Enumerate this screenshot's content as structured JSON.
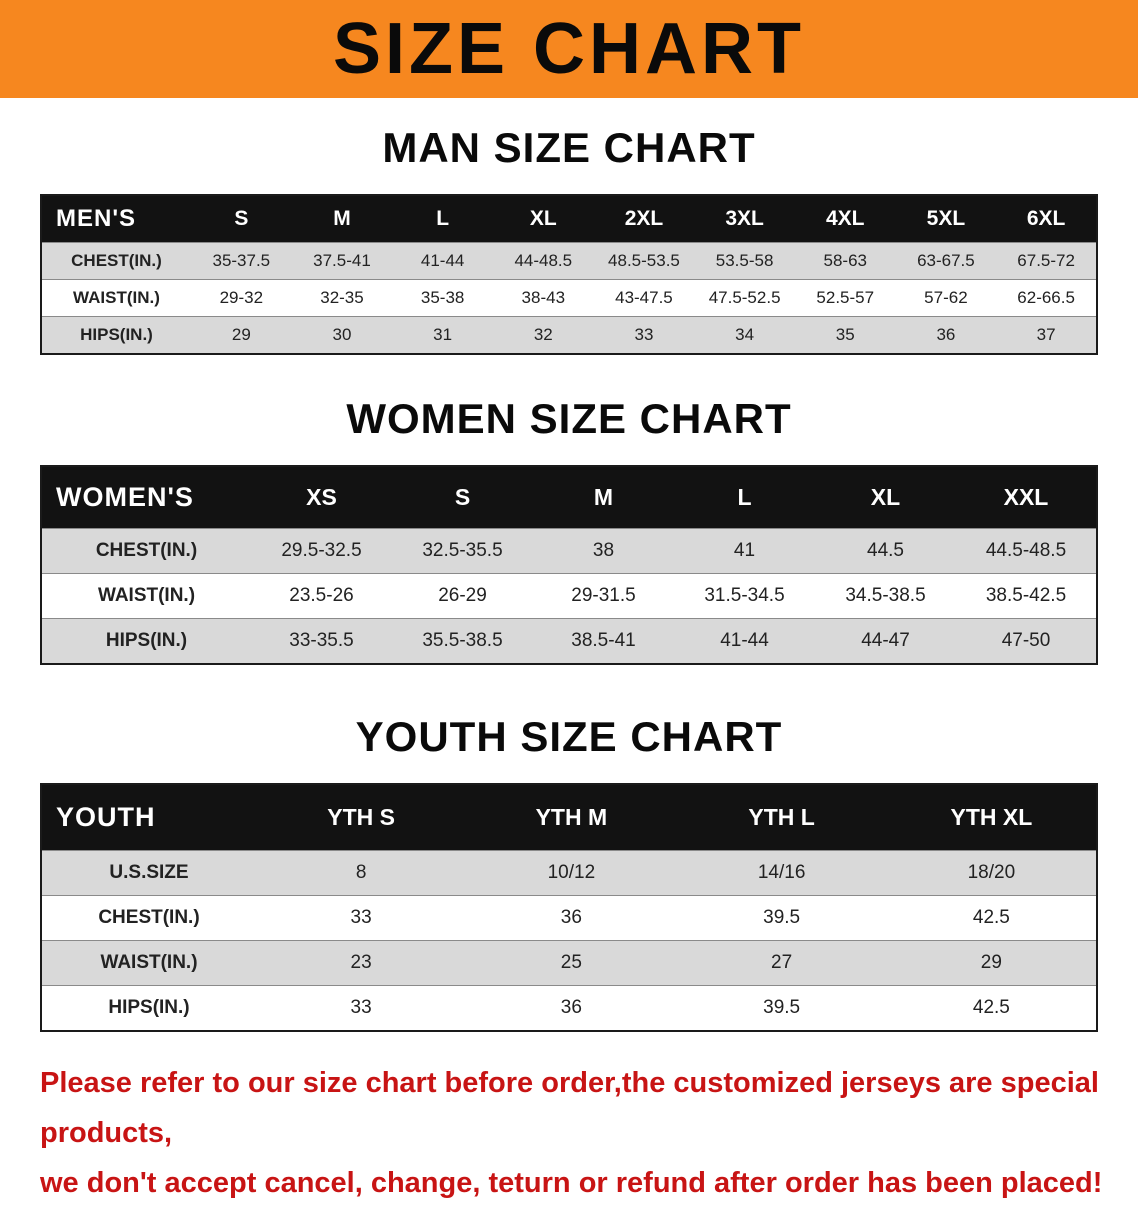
{
  "banner": {
    "title": "SIZE CHART"
  },
  "sections": [
    {
      "heading": "MAN SIZE CHART",
      "table": {
        "header": [
          "MEN'S",
          "S",
          "M",
          "L",
          "XL",
          "2XL",
          "3XL",
          "4XL",
          "5XL",
          "6XL"
        ],
        "rows": [
          [
            "CHEST(IN.)",
            "35-37.5",
            "37.5-41",
            "41-44",
            "44-48.5",
            "48.5-53.5",
            "53.5-58",
            "58-63",
            "63-67.5",
            "67.5-72"
          ],
          [
            "WAIST(IN.)",
            "29-32",
            "32-35",
            "35-38",
            "38-43",
            "43-47.5",
            "47.5-52.5",
            "52.5-57",
            "57-62",
            "62-66.5"
          ],
          [
            "HIPS(IN.)",
            "29",
            "30",
            "31",
            "32",
            "33",
            "34",
            "35",
            "36",
            "37"
          ]
        ]
      }
    },
    {
      "heading": "WOMEN SIZE CHART",
      "table": {
        "header": [
          "WOMEN'S",
          "XS",
          "S",
          "M",
          "L",
          "XL",
          "XXL"
        ],
        "rows": [
          [
            "CHEST(IN.)",
            "29.5-32.5",
            "32.5-35.5",
            "38",
            "41",
            "44.5",
            "44.5-48.5"
          ],
          [
            "WAIST(IN.)",
            "23.5-26",
            "26-29",
            "29-31.5",
            "31.5-34.5",
            "34.5-38.5",
            "38.5-42.5"
          ],
          [
            "HIPS(IN.)",
            "33-35.5",
            "35.5-38.5",
            "38.5-41",
            "41-44",
            "44-47",
            "47-50"
          ]
        ]
      }
    },
    {
      "heading": "YOUTH SIZE CHART",
      "table": {
        "header": [
          "YOUTH",
          "YTH S",
          "YTH M",
          "YTH L",
          "YTH XL"
        ],
        "rows": [
          [
            "U.S.SIZE",
            "8",
            "10/12",
            "14/16",
            "18/20"
          ],
          [
            "CHEST(IN.)",
            "33",
            "36",
            "39.5",
            "42.5"
          ],
          [
            "WAIST(IN.)",
            "23",
            "25",
            "27",
            "29"
          ],
          [
            "HIPS(IN.)",
            "33",
            "36",
            "39.5",
            "42.5"
          ]
        ]
      }
    }
  ],
  "footer": {
    "lines": [
      "Please refer to our size chart before order,the customized jerseys are special products,",
      "we don't accept cancel, change, teturn or refund after order has been placed!"
    ]
  },
  "colors": {
    "banner_bg": "#F6871F",
    "header_bg": "#121212",
    "stripe": "#D9D9D9",
    "footer_text": "#C81414"
  }
}
